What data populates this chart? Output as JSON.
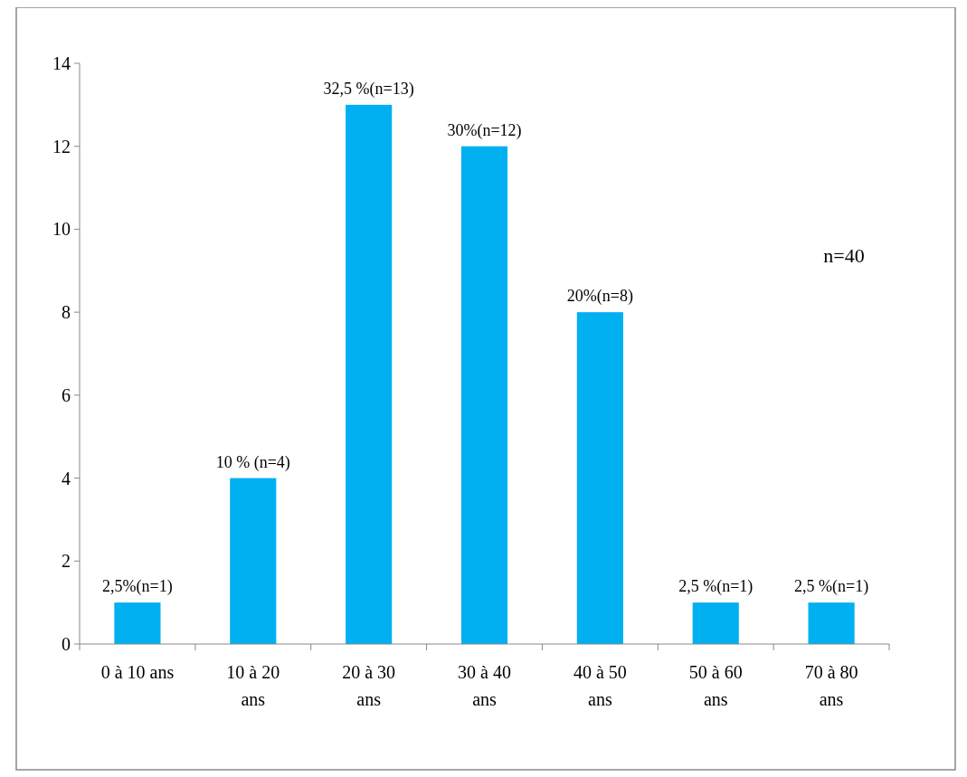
{
  "chart_data": {
    "type": "bar",
    "categories": [
      "0 à 10 ans",
      "10 à 20 ans",
      "20 à 30 ans",
      "30 à 40 ans",
      "40 à 50 ans",
      "50 à 60 ans",
      "70 à 80 ans"
    ],
    "values": [
      1,
      4,
      13,
      12,
      8,
      1,
      1
    ],
    "color": "#00b0f0",
    "value_labels": [
      "2,5%(n=1)",
      "10 % (n=4)",
      "32,5 %(n=13)",
      "30%(n=12)",
      "20%(n=8)",
      "2,5 %(n=1)",
      "2,5 %(n=1)"
    ],
    "ylim": [
      0,
      14
    ],
    "yticks": [
      0,
      2,
      4,
      6,
      8,
      10,
      12,
      14
    ],
    "grid": false,
    "annotations": [
      "n=40"
    ]
  }
}
